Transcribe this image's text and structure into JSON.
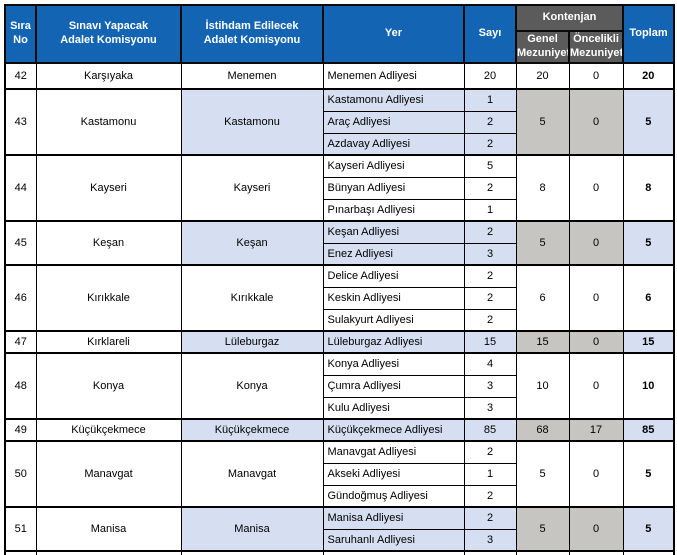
{
  "colors": {
    "header_blue": "#1464B4",
    "header_gray": "#5B5B5B",
    "row_blue": "#D5DFF1",
    "cell_gray": "#C6C5C1",
    "border": "#000000",
    "header_text": "#ffffff",
    "body_text": "#000000"
  },
  "header": {
    "sira_no": "Sıra\nNo",
    "exam_commission": "Sınavı Yapacak\nAdalet Komisyonu",
    "employment_commission": "İstihdam Edilecek\nAdalet Komisyonu",
    "place": "Yer",
    "count": "Sayı",
    "quota": "Kontenjan",
    "quota_general": "Genel\nMezuniyet",
    "quota_priority": "Öncelikli\nMezuniyet",
    "total": "Toplam"
  },
  "table": {
    "rows": [
      {
        "no": "42",
        "exam": "Karşıyaka",
        "emp": "Menemen",
        "shaded": false,
        "rh": 26,
        "places": [
          {
            "name": "Menemen Adliyesi",
            "count": "20"
          }
        ],
        "genel": "20",
        "onc": "0",
        "toplam": "20"
      },
      {
        "no": "43",
        "exam": "Kastamonu",
        "emp": "Kastamonu",
        "shaded": true,
        "places": [
          {
            "name": "Kastamonu Adliyesi",
            "count": "1"
          },
          {
            "name": "Araç Adliyesi",
            "count": "2"
          },
          {
            "name": "Azdavay Adliyesi",
            "count": "2"
          }
        ],
        "genel": "5",
        "onc": "0",
        "toplam": "5"
      },
      {
        "no": "44",
        "exam": "Kayseri",
        "emp": "Kayseri",
        "shaded": false,
        "places": [
          {
            "name": "Kayseri Adliyesi",
            "count": "5"
          },
          {
            "name": "Bünyan Adliyesi",
            "count": "2"
          },
          {
            "name": "Pınarbaşı Adliyesi",
            "count": "1"
          }
        ],
        "genel": "8",
        "onc": "0",
        "toplam": "8"
      },
      {
        "no": "45",
        "exam": "Keşan",
        "emp": "Keşan",
        "shaded": true,
        "places": [
          {
            "name": "Keşan Adliyesi",
            "count": "2"
          },
          {
            "name": "Enez Adliyesi",
            "count": "3"
          }
        ],
        "genel": "5",
        "onc": "0",
        "toplam": "5"
      },
      {
        "no": "46",
        "exam": "Kırıkkale",
        "emp": "Kırıkkale",
        "shaded": false,
        "places": [
          {
            "name": "Delice Adliyesi",
            "count": "2"
          },
          {
            "name": "Keskin Adliyesi",
            "count": "2"
          },
          {
            "name": "Sulakyurt Adliyesi",
            "count": "2"
          }
        ],
        "genel": "6",
        "onc": "0",
        "toplam": "6"
      },
      {
        "no": "47",
        "exam": "Kırklareli",
        "emp": "Lüleburgaz",
        "shaded": true,
        "places": [
          {
            "name": "Lüleburgaz Adliyesi",
            "count": "15"
          }
        ],
        "genel": "15",
        "onc": "0",
        "toplam": "15"
      },
      {
        "no": "48",
        "exam": "Konya",
        "emp": "Konya",
        "shaded": false,
        "places": [
          {
            "name": "Konya Adliyesi",
            "count": "4"
          },
          {
            "name": "Çumra Adliyesi",
            "count": "3"
          },
          {
            "name": "Kulu Adliyesi",
            "count": "3"
          }
        ],
        "genel": "10",
        "onc": "0",
        "toplam": "10"
      },
      {
        "no": "49",
        "exam": "Küçükçekmece",
        "emp": "Küçükçekmece",
        "shaded": true,
        "places": [
          {
            "name": "Küçükçekmece Adliyesi",
            "count": "85"
          }
        ],
        "genel": "68",
        "onc": "17",
        "toplam": "85"
      },
      {
        "no": "50",
        "exam": "Manavgat",
        "emp": "Manavgat",
        "shaded": false,
        "places": [
          {
            "name": "Manavgat Adliyesi",
            "count": "2"
          },
          {
            "name": "Akseki Adliyesi",
            "count": "1"
          },
          {
            "name": "Gündoğmuş Adliyesi",
            "count": "2"
          }
        ],
        "genel": "5",
        "onc": "0",
        "toplam": "5"
      },
      {
        "no": "51",
        "exam": "Manisa",
        "emp": "Manisa",
        "shaded": true,
        "places": [
          {
            "name": "Manisa Adliyesi",
            "count": "2"
          },
          {
            "name": "Saruhanlı Adliyesi",
            "count": "3"
          }
        ],
        "genel": "5",
        "onc": "0",
        "toplam": "5"
      },
      {
        "no": "",
        "exam": "",
        "emp": "",
        "shaded": false,
        "rh": 6,
        "places": [
          {
            "name": "",
            "count": ""
          }
        ],
        "genel": "",
        "onc": "",
        "toplam": ""
      }
    ]
  }
}
